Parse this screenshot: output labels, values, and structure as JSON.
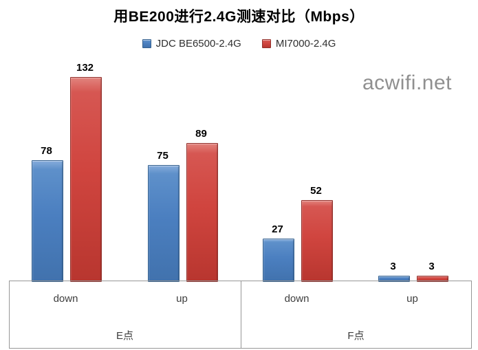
{
  "title": "用BE200进行2.4G测速对比（Mbps）",
  "watermark": "acwifi.net",
  "legend": {
    "items": [
      {
        "label": "JDC BE6500-2.4G",
        "color": "#4b7fc0"
      },
      {
        "label": "MI7000-2.4G",
        "color": "#d0453f"
      }
    ]
  },
  "chart_data": {
    "type": "bar",
    "title": "用BE200进行2.4G测速对比（Mbps）",
    "unit": "Mbps",
    "categories": [
      "down",
      "up",
      "down",
      "up"
    ],
    "groups": [
      {
        "label": "E点",
        "category_indexes": [
          0,
          1
        ]
      },
      {
        "label": "F点",
        "category_indexes": [
          2,
          3
        ]
      }
    ],
    "series": [
      {
        "name": "JDC BE6500-2.4G",
        "color": "#4b7fc0",
        "values": [
          78,
          75,
          27,
          3
        ]
      },
      {
        "name": "MI7000-2.4G",
        "color": "#d0453f",
        "values": [
          132,
          89,
          52,
          3
        ]
      }
    ],
    "data_labels": true,
    "ylim": [
      0,
      140
    ],
    "grid": false,
    "legend_position": "top"
  }
}
